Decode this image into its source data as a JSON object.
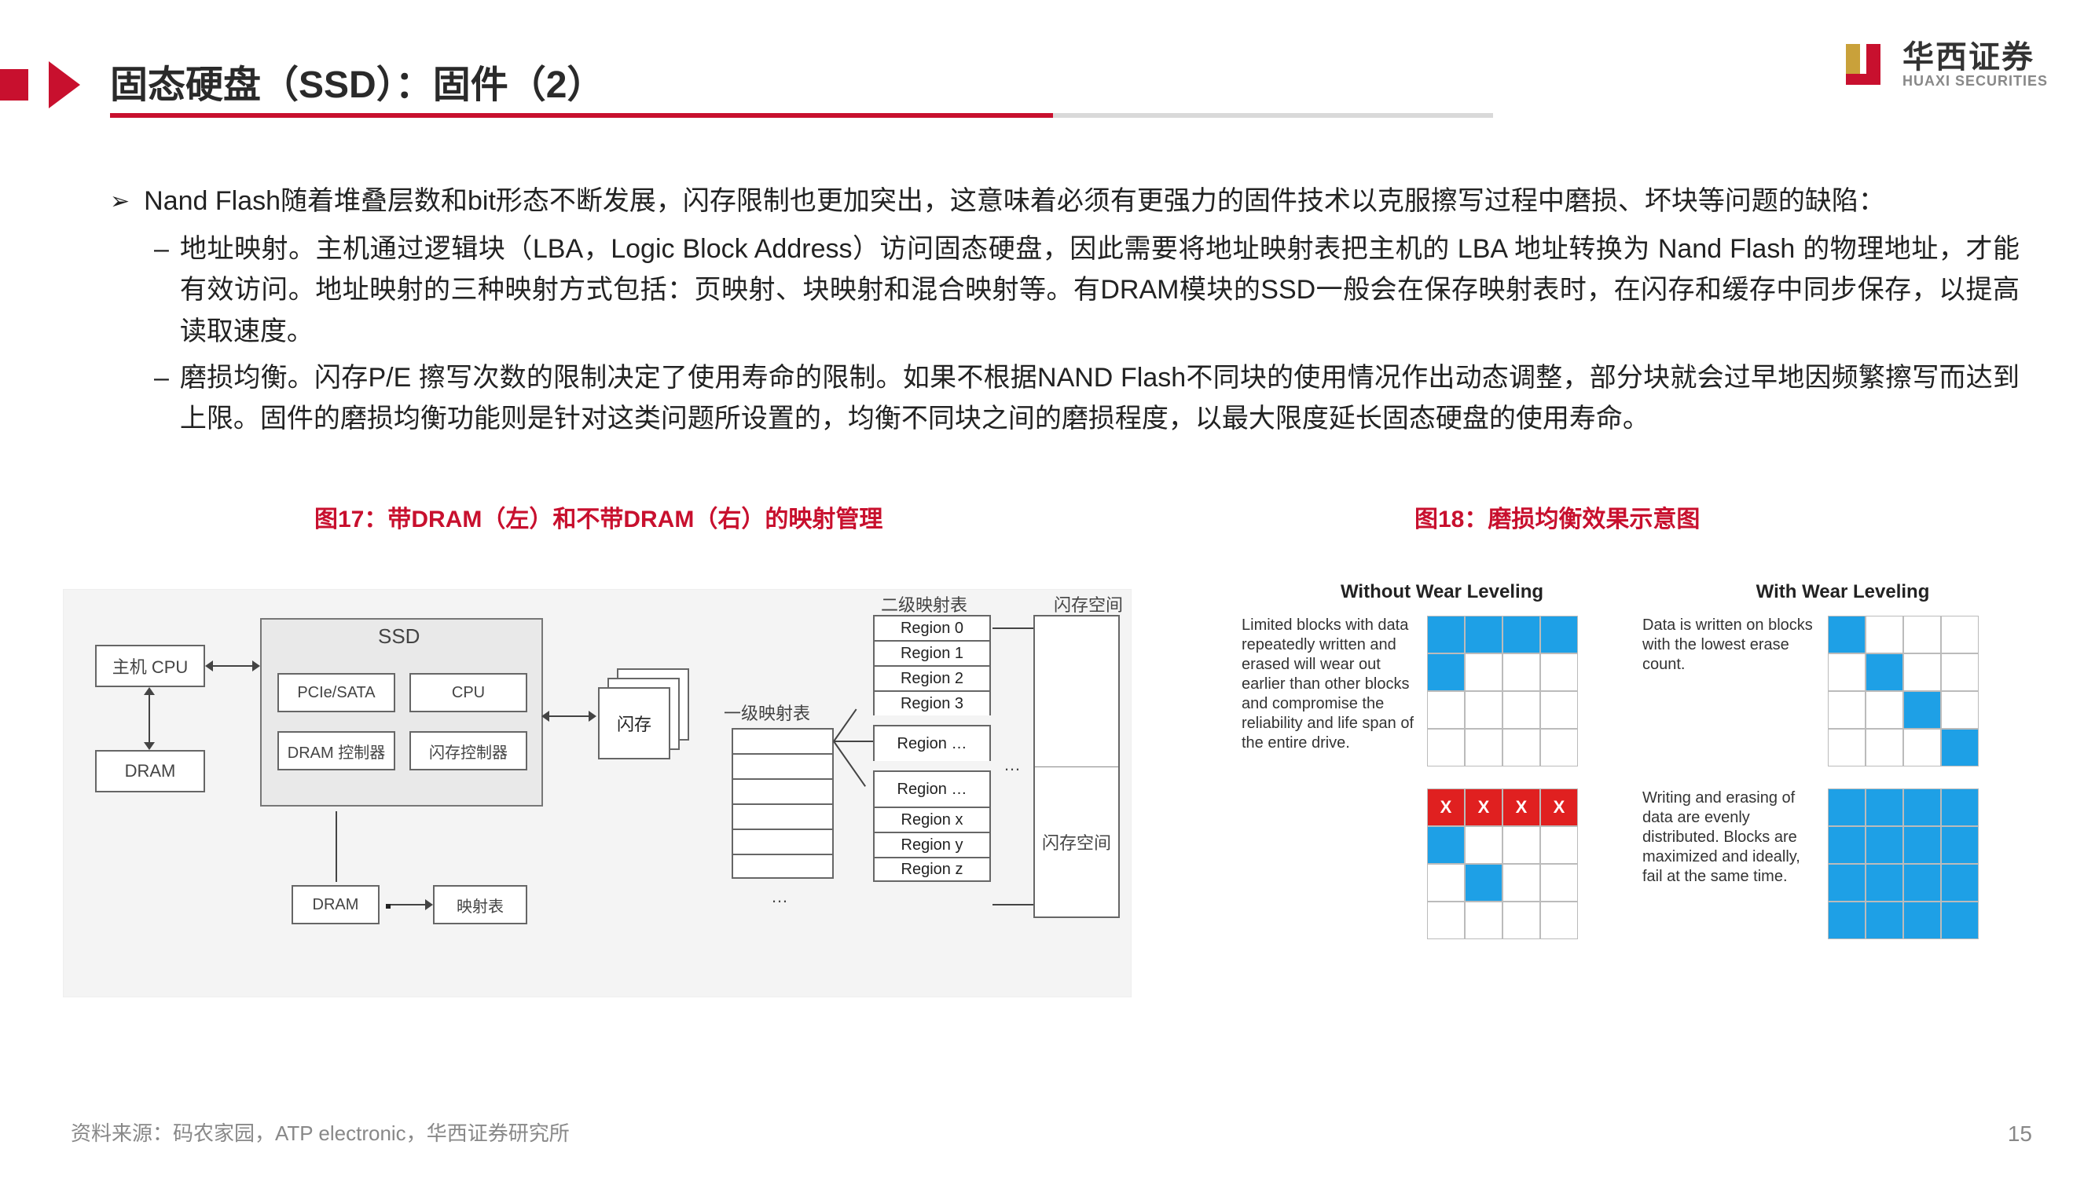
{
  "header": {
    "title": "固态硬盘（SSD）：固件（2）",
    "logo_cn": "华西证券",
    "logo_en": "HUAXI SECURITIES",
    "logo_colors": {
      "red": "#c8102e",
      "gold": "#c9a13a"
    }
  },
  "body": {
    "bullet_mark": "➢",
    "lead": "Nand Flash随着堆叠层数和bit形态不断发展，闪存限制也更加突出，这意味着必须有更强力的固件技术以克服擦写过程中磨损、坏块等问题的缺陷：",
    "items": [
      {
        "dash": "–",
        "text": "地址映射。主机通过逻辑块（LBA，Logic Block Address）访问固态硬盘，因此需要将地址映射表把主机的 LBA 地址转换为 Nand Flash 的物理地址，才能有效访问。地址映射的三种映射方式包括：页映射、块映射和混合映射等。有DRAM模块的SSD一般会在保存映射表时，在闪存和缓存中同步保存，以提高读取速度。"
      },
      {
        "dash": "–",
        "text": "磨损均衡。闪存P/E 擦写次数的限制决定了使用寿命的限制。如果不根据NAND Flash不同块的使用情况作出动态调整，部分块就会过早地因频繁擦写而达到上限。固件的磨损均衡功能则是针对这类问题所设置的，均衡不同块之间的磨损程度，以最大限度延长固态硬盘的使用寿命。"
      }
    ]
  },
  "fig17": {
    "title": "图17：带DRAM（左）和不带DRAM（右）的映射管理",
    "labels": {
      "host_cpu": "主机 CPU",
      "dram": "DRAM",
      "ssd": "SSD",
      "pcie_sata": "PCIe/SATA",
      "cpu": "CPU",
      "dram_ctrl": "DRAM 控制器",
      "flash_ctrl": "闪存控制器",
      "nand": "闪存",
      "dram2": "DRAM",
      "map_table": "映射表",
      "lvl1": "一级映射表",
      "lvl2": "二级映射表",
      "flash_space_hdr": "闪存空间",
      "flash_space_cell": "闪存空间",
      "regions": [
        "Region 0",
        "Region 1",
        "Region 2",
        "Region 3",
        "Region …",
        "Region …",
        "Region x",
        "Region y",
        "Region z"
      ],
      "lvl1_rows": 6
    },
    "style": {
      "border_color": "#666666",
      "bg": "#f4f4f4",
      "font_size": 22
    }
  },
  "fig18": {
    "title": "图18：磨损均衡效果示意图",
    "without_hdr": "Without Wear Leveling",
    "with_hdr": "With Wear Leveling",
    "text_a": "Limited blocks with data repeatedly written and erased will wear out earlier than other blocks and compromise the reliability and life span of the entire drive.",
    "text_b": "Data is written on blocks with the lowest erase count.",
    "text_c": "Writing and erasing of data are evenly distributed. Blocks are maximized and ideally, fail at the same time.",
    "grid_colors": {
      "blue": "#1ea0e6",
      "red": "#e02020",
      "border": "#bbbbbb"
    },
    "grid_a_top": [
      [
        "b",
        "b",
        "b",
        "b"
      ],
      [
        "b",
        "",
        "",
        ""
      ],
      [
        "",
        "",
        "",
        ""
      ],
      [
        "",
        "",
        "",
        ""
      ]
    ],
    "grid_b_top": [
      [
        "b",
        "",
        "",
        ""
      ],
      [
        "",
        "b",
        "",
        ""
      ],
      [
        "",
        "",
        "b",
        ""
      ],
      [
        "",
        "",
        "",
        "b"
      ]
    ],
    "grid_a_bot": [
      [
        "r",
        "r",
        "r",
        "r"
      ],
      [
        "b",
        "",
        "",
        ""
      ],
      [
        "",
        "b",
        "",
        ""
      ],
      [
        "",
        "",
        "",
        ""
      ]
    ],
    "grid_b_bot": [
      [
        "b",
        "b",
        "b",
        "b"
      ],
      [
        "b",
        "b",
        "b",
        "b"
      ],
      [
        "b",
        "b",
        "b",
        "b"
      ],
      [
        "b",
        "b",
        "b",
        "b"
      ]
    ],
    "red_x": "X"
  },
  "footer": {
    "text_prefix": "资料来源：码农家园，",
    "text_bold": "ATP electronic，",
    "text_suffix": "华西证券研究所",
    "page": "15"
  }
}
